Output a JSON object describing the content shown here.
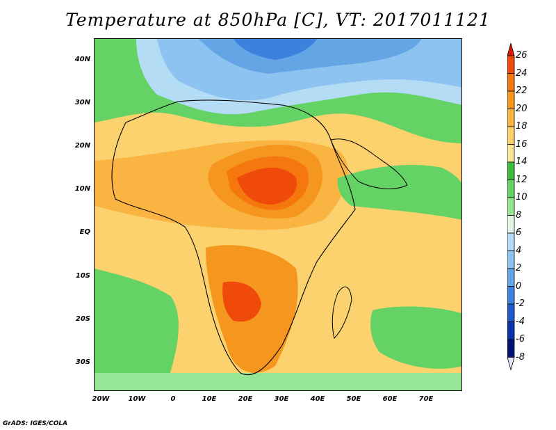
{
  "title": "Temperature at 850hPa [C], VT: 2017011121",
  "credit": "GrADS: IGES/COLA",
  "lat_labels": [
    "40N",
    "30N",
    "20N",
    "10N",
    "EQ",
    "10S",
    "20S",
    "30S"
  ],
  "lon_labels": [
    "20W",
    "10W",
    "0",
    "10E",
    "20E",
    "30E",
    "40E",
    "50E",
    "60E",
    "70E"
  ],
  "colorbar": {
    "labels": [
      "26",
      "24",
      "22",
      "20",
      "18",
      "16",
      "14",
      "12",
      "10",
      "8",
      "6",
      "4",
      "2",
      "0",
      "-2",
      "-4",
      "-6",
      "-8"
    ],
    "colors": [
      "#e01a0a",
      "#f04a0a",
      "#f5780f",
      "#f5961e",
      "#fab441",
      "#fcd26e",
      "#fae696",
      "#3cbe3c",
      "#64d264",
      "#96e696",
      "#e6f5e6",
      "#b4dcf5",
      "#8cc3f0",
      "#64a5e6",
      "#3c82dc",
      "#1e5ac8",
      "#0a32aa",
      "#001478",
      "#e6e6fa"
    ]
  }
}
